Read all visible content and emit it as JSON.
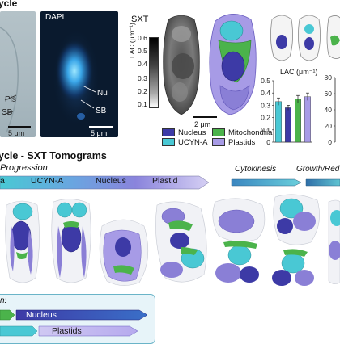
{
  "header": {
    "title_left": "ycle"
  },
  "panel_a": {
    "label_pls": "Pls",
    "label_sb": "SB",
    "scale": "5 μm"
  },
  "panel_b": {
    "title": "DAPI",
    "label_nu": "Nu",
    "label_sb": "SB",
    "scale": "5 μm"
  },
  "panel_c": {
    "title": "SXT",
    "colorbar_label": "LAC (μm⁻¹)",
    "colorbar_ticks": [
      "0.6",
      "0.5",
      "0.4",
      "0.3",
      "0.2",
      "0.1"
    ],
    "scale": "2 μm"
  },
  "legend": {
    "items": [
      {
        "name": "Nucleus",
        "color": "#3d3aa6"
      },
      {
        "name": "Mitochondria",
        "color": "#4bb34b"
      },
      {
        "name": "UCYN-A",
        "color": "#49c8d4"
      },
      {
        "name": "Plastids",
        "color": "#a79be6"
      }
    ]
  },
  "chart_data": [
    {
      "type": "bar",
      "title": "LAC (μm⁻¹)",
      "ylim": [
        0,
        0.5
      ],
      "yticks": [
        "0.5",
        "0.4",
        "0.3",
        "0.2",
        "0.1",
        "0"
      ],
      "values": [
        0.33,
        0.28,
        0.35,
        0.37
      ],
      "errors": [
        0.03,
        0.02,
        0.03,
        0.03
      ],
      "colors": [
        "#49c8d4",
        "#3d3aa6",
        "#4bb34b",
        "#a79be6"
      ]
    },
    {
      "type": "bar",
      "title": "",
      "yticks": [
        "80",
        "60",
        "40",
        "20",
        "0"
      ],
      "values": []
    }
  ],
  "section": {
    "title": "ycle - SXT Tomograms",
    "subtitle": "Progression",
    "arrow_labels": [
      "a",
      "UCYN-A",
      "Nucleus",
      "Plastid"
    ],
    "stage_cytokinesis": "Cytokinesis",
    "stage_growth": "Growth/Red"
  },
  "bottom_legend": {
    "title": "n:",
    "row1": "Nucleus",
    "row2": "Plastids"
  }
}
